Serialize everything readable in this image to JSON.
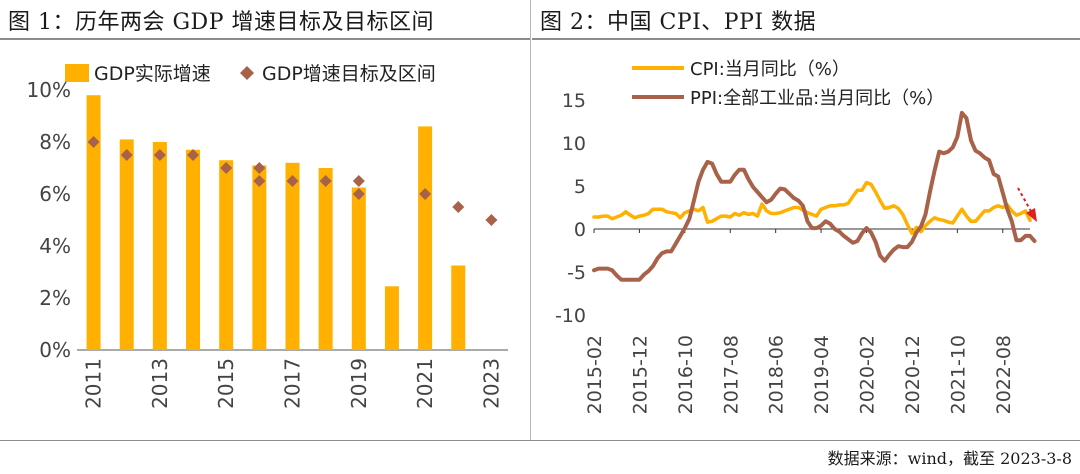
{
  "source": "数据来源：wind，截至 2023-3-8",
  "chart_data": [
    {
      "type": "bar",
      "title": "图 1：历年两会 GDP 增速目标及目标区间",
      "categories": [
        "2011",
        "2012",
        "2013",
        "2014",
        "2015",
        "2016",
        "2017",
        "2018",
        "2019",
        "2020",
        "2021",
        "2022",
        "2023"
      ],
      "x_tick_labels": [
        "2011",
        "2013",
        "2015",
        "2017",
        "2019",
        "2021",
        "2023"
      ],
      "ylim": [
        0,
        10
      ],
      "y_ticks": [
        0,
        2,
        4,
        6,
        8,
        10
      ],
      "y_tick_labels": [
        "0%",
        "2%",
        "4%",
        "6%",
        "8%",
        "10%"
      ],
      "legend": [
        "GDP实际增速",
        "GDP增速目标及区间"
      ],
      "series": [
        {
          "name": "GDP实际增速",
          "kind": "bar",
          "color": "#FFB000",
          "values": [
            9.8,
            8.1,
            8.0,
            7.7,
            7.3,
            7.1,
            7.2,
            7.0,
            6.25,
            2.45,
            8.6,
            3.25,
            null
          ]
        },
        {
          "name": "GDP增速目标及区间",
          "kind": "marker",
          "color": "#A8624A",
          "points": [
            [
              0,
              8.0
            ],
            [
              1,
              7.5
            ],
            [
              2,
              7.5
            ],
            [
              3,
              7.5
            ],
            [
              4,
              7.0
            ],
            [
              5,
              7.0
            ],
            [
              5,
              6.5
            ],
            [
              6,
              6.5
            ],
            [
              7,
              6.5
            ],
            [
              8,
              6.5
            ],
            [
              8,
              6.0
            ],
            [
              10,
              6.0
            ],
            [
              11,
              5.5
            ],
            [
              12,
              5.0
            ]
          ]
        }
      ]
    },
    {
      "type": "line",
      "title": "图 2：中国 CPI、PPI 数据",
      "x_tick_labels": [
        "2015-02",
        "2015-12",
        "2016-10",
        "2017-08",
        "2018-06",
        "2019-04",
        "2020-02",
        "2020-12",
        "2021-10",
        "2022-08"
      ],
      "x_range_months": [
        0,
        96
      ],
      "ylim": [
        -10,
        15
      ],
      "y_ticks": [
        -10,
        -5,
        0,
        5,
        10,
        15
      ],
      "y_tick_labels": [
        "-10",
        "-5",
        "0",
        "5",
        "10",
        "15"
      ],
      "legend": [
        "CPI:当月同比（%）",
        "PPI:全部工业品:当月同比（%）"
      ],
      "series": [
        {
          "name": "CPI:当月同比（%）",
          "color": "#FFB000",
          "values": [
            1.4,
            1.4,
            1.5,
            1.5,
            1.2,
            1.4,
            1.6,
            2.0,
            1.6,
            1.3,
            1.5,
            1.6,
            1.8,
            2.3,
            2.3,
            2.3,
            2.0,
            1.9,
            1.8,
            1.3,
            1.9,
            2.1,
            2.3,
            2.1,
            2.5,
            0.8,
            0.9,
            1.2,
            1.5,
            1.5,
            1.4,
            1.8,
            1.6,
            1.9,
            1.7,
            1.8,
            1.5,
            2.9,
            2.1,
            1.8,
            1.8,
            1.9,
            2.1,
            2.3,
            2.5,
            2.5,
            2.2,
            1.9,
            1.7,
            1.5,
            2.3,
            2.5,
            2.7,
            2.7,
            2.8,
            2.8,
            3.0,
            3.8,
            4.5,
            4.5,
            5.4,
            5.2,
            4.3,
            3.3,
            2.4,
            2.5,
            2.7,
            2.4,
            1.7,
            0.5,
            -0.5,
            0.2,
            -0.3,
            0.4,
            0.9,
            1.3,
            1.1,
            1.0,
            0.8,
            0.7,
            1.5,
            2.3,
            1.5,
            0.9,
            0.9,
            1.5,
            2.1,
            2.1,
            2.5,
            2.7,
            2.5,
            2.8,
            2.1,
            1.6,
            1.8,
            2.1,
            1.0
          ]
        },
        {
          "name": "PPI:全部工业品:当月同比（%）",
          "color": "#A8624A",
          "values": [
            -4.8,
            -4.6,
            -4.6,
            -4.6,
            -4.8,
            -5.4,
            -5.9,
            -5.9,
            -5.9,
            -5.9,
            -5.9,
            -5.3,
            -4.9,
            -4.3,
            -3.4,
            -2.8,
            -2.6,
            -2.6,
            -1.7,
            -0.8,
            0.1,
            1.2,
            3.3,
            5.5,
            6.9,
            7.8,
            7.6,
            6.4,
            5.5,
            5.5,
            5.5,
            6.3,
            6.9,
            6.9,
            5.8,
            4.9,
            4.3,
            3.7,
            3.1,
            3.4,
            4.1,
            4.7,
            4.6,
            4.1,
            3.6,
            3.3,
            2.7,
            0.9,
            0.1,
            0.1,
            0.4,
            0.9,
            0.6,
            0.0,
            -0.3,
            -0.8,
            -1.2,
            -1.6,
            -1.4,
            -0.5,
            0.1,
            -0.4,
            -1.5,
            -3.1,
            -3.7,
            -3.0,
            -2.4,
            -2.0,
            -2.1,
            -2.1,
            -1.5,
            -0.4,
            0.3,
            1.7,
            4.4,
            6.8,
            9.0,
            8.8,
            9.0,
            9.5,
            10.7,
            13.5,
            12.9,
            10.3,
            9.1,
            8.8,
            8.3,
            8.0,
            6.4,
            6.1,
            4.2,
            2.3,
            0.9,
            -1.3,
            -1.3,
            -0.8,
            -0.8,
            -1.4
          ]
        }
      ]
    }
  ]
}
